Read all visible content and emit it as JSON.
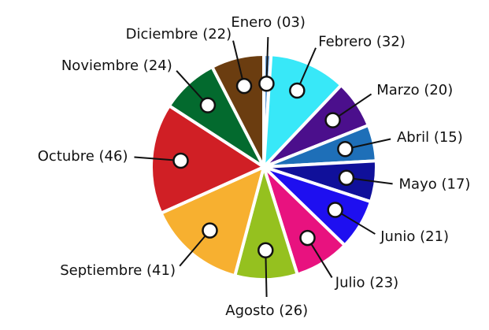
{
  "chart_data": {
    "type": "pie",
    "categories": [
      "Enero (03)",
      "Febrero (32)",
      "Marzo (20)",
      "Abril (15)",
      "Mayo (17)",
      "Junio (21)",
      "Julio (23)",
      "Agosto (26)",
      "Septiembre (41)",
      "Octubre (46)",
      "Noviembre (24)",
      "Diciembre (22)"
    ],
    "values": [
      3,
      32,
      20,
      15,
      17,
      21,
      23,
      26,
      41,
      46,
      24,
      22
    ],
    "colors": [
      "#6aa0d8",
      "#38e8f8",
      "#4b0f8c",
      "#1e6fb8",
      "#10109a",
      "#1e0ff0",
      "#e8127f",
      "#95c11f",
      "#f7b030",
      "#d01f25",
      "#036a2e",
      "#6b3d10"
    ]
  }
}
